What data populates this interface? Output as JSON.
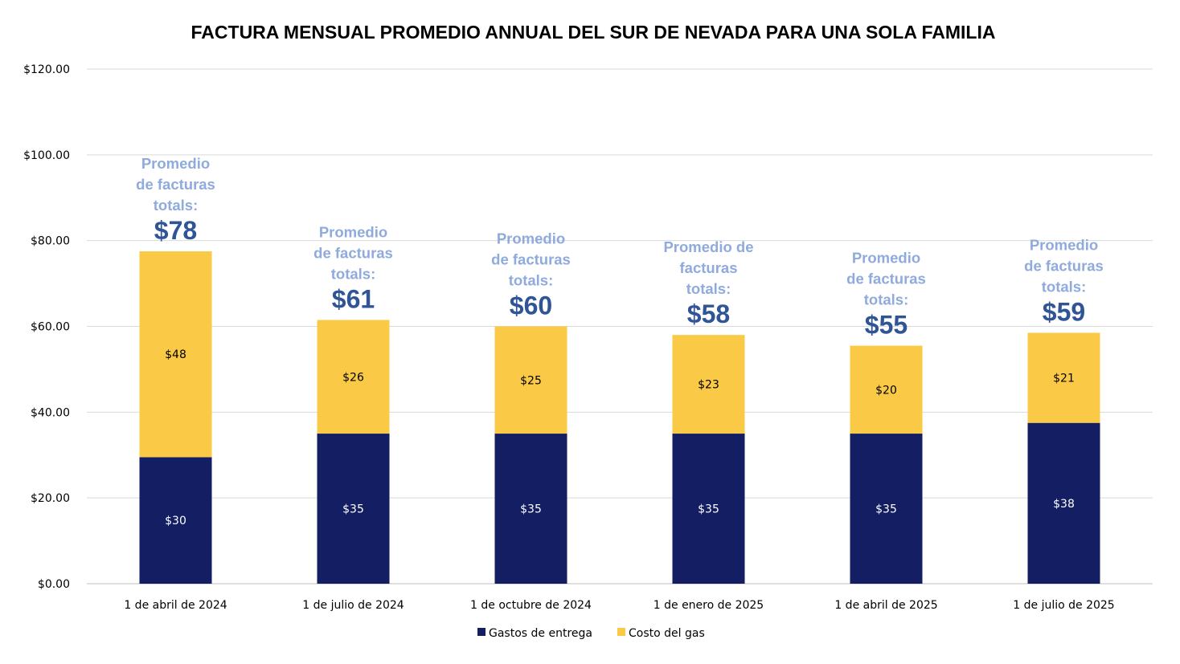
{
  "colors": {
    "delivery": "#131E63",
    "gas": "#FACA47",
    "annotation_label": "#8FAADC",
    "annotation_total": "#2F5597",
    "grid": "#D9D9D9",
    "axis": "#BFBFBF",
    "label_on_dark": "#FFFFFF",
    "label_on_light": "#000000"
  },
  "chart_data": {
    "type": "bar",
    "stacked": true,
    "title": "FACTURA MENSUAL PROMEDIO ANNUAL DEL SUR DE NEVADA PARA UNA SOLA FAMILIA",
    "xlabel": "",
    "ylabel": "",
    "ylim": [
      0,
      120
    ],
    "ytick_step": 20,
    "yticks": [
      "$0.00",
      "$20.00",
      "$40.00",
      "$60.00",
      "$80.00",
      "$100.00",
      "$120.00"
    ],
    "grid": true,
    "legend_position": "bottom",
    "categories": [
      "1 de abril de 2024",
      "1 de julio de 2024",
      "1 de octubre de 2024",
      "1 de enero de 2025",
      "1 de abril de 2025",
      "1 de julio de 2025"
    ],
    "series": [
      {
        "name": "Gastos de entrega",
        "color_key": "delivery",
        "values": [
          29.5,
          35,
          35,
          35,
          35,
          37.5
        ],
        "labels": [
          "$30",
          "$35",
          "$35",
          "$35",
          "$35",
          "$38"
        ]
      },
      {
        "name": "Costo del gas",
        "color_key": "gas",
        "values": [
          48,
          26.5,
          25,
          23,
          20.5,
          21
        ],
        "labels": [
          "$48",
          "$26",
          "$25",
          "$23",
          "$20",
          "$21"
        ]
      }
    ],
    "annotations": [
      {
        "label_lines": [
          "Promedio",
          "de facturas",
          "totals:"
        ],
        "total": "$78"
      },
      {
        "label_lines": [
          "Promedio",
          "de facturas",
          "totals:"
        ],
        "total": "$61"
      },
      {
        "label_lines": [
          "Promedio",
          "de facturas",
          "totals:"
        ],
        "total": "$60"
      },
      {
        "label_lines": [
          "Promedio de",
          "facturas",
          "totals:"
        ],
        "total": "$58"
      },
      {
        "label_lines": [
          "Promedio",
          "de facturas",
          "totals:"
        ],
        "total": "$55"
      },
      {
        "label_lines": [
          "Promedio",
          "de facturas",
          "totals:"
        ],
        "total": "$59"
      }
    ]
  }
}
